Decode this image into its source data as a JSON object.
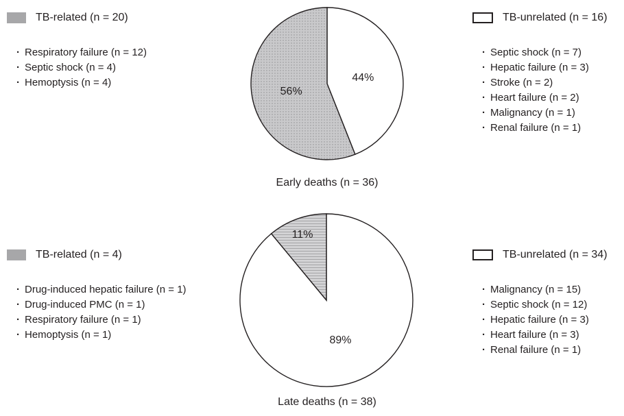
{
  "chart_data": [
    {
      "type": "pie",
      "caption": "Early deaths (n = 36)",
      "slices": [
        {
          "name": "TB-unrelated",
          "value": 44,
          "label": "44%",
          "fill": "#ffffff",
          "pattern": "none"
        },
        {
          "name": "TB-related",
          "value": 56,
          "label": "56%",
          "fill": "#c9c9cb",
          "pattern": "dots"
        }
      ],
      "legend_left": {
        "title": "TB-related (n = 20)",
        "items": [
          "Respiratory failure (n = 12)",
          "Septic shock (n = 4)",
          "Hemoptysis (n = 4)"
        ]
      },
      "legend_right": {
        "title": "TB-unrelated (n = 16)",
        "items": [
          "Septic shock (n = 7)",
          "Hepatic failure (n = 3)",
          "Stroke (n = 2)",
          "Heart failure (n = 2)",
          "Malignancy (n = 1)",
          "Renal failure (n = 1)"
        ]
      }
    },
    {
      "type": "pie",
      "caption": "Late deaths (n = 38)",
      "slices": [
        {
          "name": "TB-unrelated",
          "value": 89,
          "label": "89%",
          "fill": "#ffffff",
          "pattern": "none"
        },
        {
          "name": "TB-related",
          "value": 11,
          "label": "11%",
          "fill": "#d3d3d5",
          "pattern": "hlines"
        }
      ],
      "legend_left": {
        "title": "TB-related (n = 4)",
        "items": [
          "Drug-induced hepatic failure (n = 1)",
          "Drug-induced PMC (n = 1)",
          "Respiratory failure (n = 1)",
          "Hemoptysis (n = 1)"
        ]
      },
      "legend_right": {
        "title": "TB-unrelated (n = 34)",
        "items": [
          "Malignancy (n = 15)",
          "Septic shock (n = 12)",
          "Hepatic failure (n = 3)",
          "Heart failure (n = 3)",
          "Renal failure (n = 1)"
        ]
      }
    }
  ],
  "colors": {
    "related_swatch": "#a7a7a9",
    "outline": "#231f20"
  }
}
